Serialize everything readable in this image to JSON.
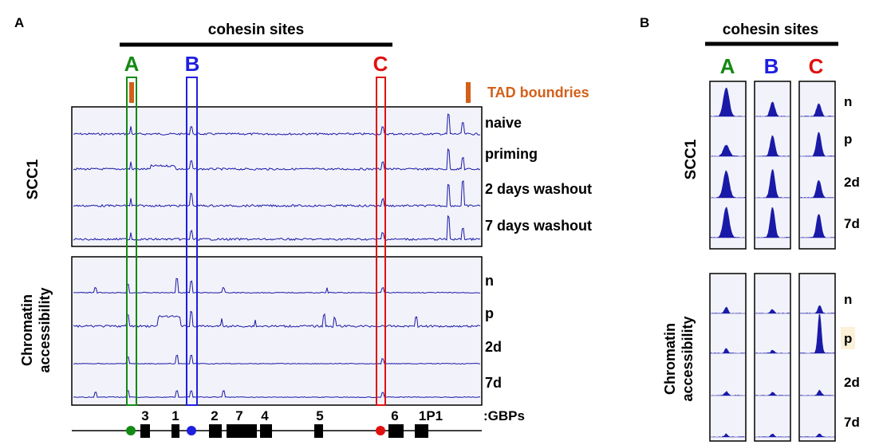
{
  "panel_a": {
    "panel_label": "A",
    "header": "cohesin sites",
    "site_labels": [
      {
        "label": "A",
        "color": "#138a13"
      },
      {
        "label": "B",
        "color": "#1f1fe0"
      },
      {
        "label": "C",
        "color": "#e01010"
      }
    ],
    "tad_legend": {
      "label": "TAD boundries",
      "color": "#d2601a"
    },
    "scc1": {
      "group_label": "SCC1",
      "tracks": [
        "naive",
        "priming",
        "2 days washout",
        "7 days washout"
      ]
    },
    "chromatin": {
      "group_label_line1": "Chromatin",
      "group_label_line2": "accessibility",
      "tracks": [
        "n",
        "p",
        "2d",
        "7d"
      ]
    },
    "gene_axis": {
      "suffix": ":GBPs",
      "genes": [
        "3",
        "1",
        "2",
        "7",
        "4",
        "5",
        "6",
        "1P1"
      ]
    }
  },
  "panel_b": {
    "panel_label": "B",
    "header": "cohesin sites",
    "site_labels": [
      {
        "label": "A",
        "color": "#138a13"
      },
      {
        "label": "B",
        "color": "#1f1fe0"
      },
      {
        "label": "C",
        "color": "#e01010"
      }
    ],
    "scc1": {
      "group_label": "SCC1",
      "rows": [
        "n",
        "p",
        "2d",
        "7d"
      ]
    },
    "chromatin": {
      "group_label_line1": "Chromatin",
      "group_label_line2": "accessibility",
      "rows": [
        "n",
        "p",
        "2d",
        "7d"
      ],
      "highlighted_row": "p",
      "highlight_color": "#fbf0d8"
    }
  },
  "colors": {
    "signal": "#1a1aa8",
    "track_bg": "#f2f2fa"
  }
}
